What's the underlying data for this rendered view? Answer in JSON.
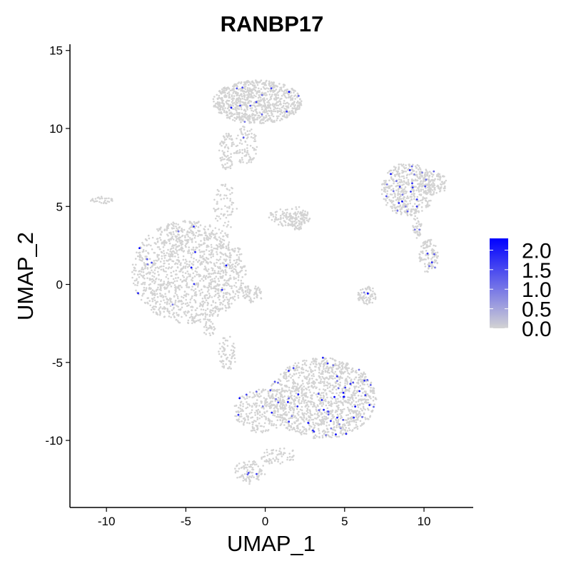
{
  "chart_data": {
    "type": "scatter",
    "title": "RANBP17",
    "xlabel": "UMAP_1",
    "ylabel": "UMAP_2",
    "xlim": [
      -12.3,
      13.1
    ],
    "ylim": [
      -14.3,
      15.4
    ],
    "x_ticks": [
      -10,
      -5,
      0,
      5,
      10
    ],
    "y_ticks": [
      -10,
      -5,
      0,
      5,
      10,
      15
    ],
    "x_tick_labels": [
      "-10",
      "-5",
      "0",
      "5",
      "10"
    ],
    "y_tick_labels": [
      "-10",
      "-5",
      "0",
      "5",
      "10",
      "15"
    ],
    "grid": false,
    "point_color_low": "#D3D3D3",
    "point_color_high": "#0000FF",
    "color_scale": {
      "name": "",
      "min": 0.0,
      "max": 2.3,
      "ticks": [
        0.0,
        0.5,
        1.0,
        1.5,
        2.0
      ],
      "tick_labels": [
        "0.0",
        "0.5",
        "1.0",
        "1.5",
        "2.0"
      ],
      "placement": "right"
    },
    "clusters": [
      {
        "cx": -4.8,
        "cy": 0.8,
        "rx": 3.6,
        "ry": 3.3,
        "n": 1400,
        "expressed_fraction": 0.006
      },
      {
        "cx": -0.8,
        "cy": -0.6,
        "rx": 0.7,
        "ry": 0.6,
        "n": 60,
        "expressed_fraction": 0.01
      },
      {
        "cx": -0.5,
        "cy": 11.7,
        "rx": 2.8,
        "ry": 1.4,
        "n": 900,
        "expressed_fraction": 0.012
      },
      {
        "cx": -1.2,
        "cy": 8.9,
        "rx": 0.7,
        "ry": 1.3,
        "n": 90,
        "expressed_fraction": 0.01
      },
      {
        "cx": -2.4,
        "cy": 8.5,
        "rx": 0.5,
        "ry": 1.2,
        "n": 80,
        "expressed_fraction": 0.005
      },
      {
        "cx": 1.5,
        "cy": 4.3,
        "rx": 1.4,
        "ry": 0.6,
        "n": 120,
        "expressed_fraction": 0.0
      },
      {
        "cx": 2.0,
        "cy": 4.2,
        "rx": 0.5,
        "ry": 0.8,
        "n": 60,
        "expressed_fraction": 0.0
      },
      {
        "cx": -2.4,
        "cy": -4.4,
        "rx": 0.6,
        "ry": 1.1,
        "n": 70,
        "expressed_fraction": 0.0
      },
      {
        "cx": -3.5,
        "cy": -2.8,
        "rx": 0.4,
        "ry": 0.6,
        "n": 30,
        "expressed_fraction": 0.0
      },
      {
        "cx": 3.6,
        "cy": -7.3,
        "rx": 3.4,
        "ry": 2.6,
        "n": 1300,
        "expressed_fraction": 0.04
      },
      {
        "cx": -0.3,
        "cy": -8.1,
        "rx": 1.7,
        "ry": 1.4,
        "n": 250,
        "expressed_fraction": 0.03
      },
      {
        "cx": -1.0,
        "cy": -12.0,
        "rx": 1.0,
        "ry": 0.8,
        "n": 90,
        "expressed_fraction": 0.02
      },
      {
        "cx": 0.8,
        "cy": -11.0,
        "rx": 1.2,
        "ry": 0.6,
        "n": 60,
        "expressed_fraction": 0.01
      },
      {
        "cx": 9.0,
        "cy": 6.1,
        "rx": 1.7,
        "ry": 1.7,
        "n": 450,
        "expressed_fraction": 0.05
      },
      {
        "cx": 10.5,
        "cy": 6.5,
        "rx": 1.0,
        "ry": 0.8,
        "n": 120,
        "expressed_fraction": 0.02
      },
      {
        "cx": 10.3,
        "cy": 1.8,
        "rx": 0.6,
        "ry": 1.1,
        "n": 110,
        "expressed_fraction": 0.04
      },
      {
        "cx": 9.6,
        "cy": 3.8,
        "rx": 0.3,
        "ry": 1.0,
        "n": 40,
        "expressed_fraction": 0.02
      },
      {
        "cx": 6.4,
        "cy": -0.7,
        "rx": 0.6,
        "ry": 0.6,
        "n": 70,
        "expressed_fraction": 0.03
      },
      {
        "cx": -10.3,
        "cy": 5.4,
        "rx": 0.7,
        "ry": 0.25,
        "n": 30,
        "expressed_fraction": 0.0
      },
      {
        "cx": -2.5,
        "cy": 5.0,
        "rx": 0.8,
        "ry": 1.5,
        "n": 70,
        "expressed_fraction": 0.0
      }
    ]
  }
}
